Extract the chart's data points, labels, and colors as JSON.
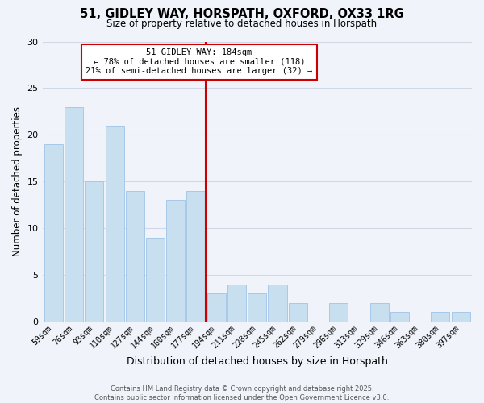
{
  "title": "51, GIDLEY WAY, HORSPATH, OXFORD, OX33 1RG",
  "subtitle": "Size of property relative to detached houses in Horspath",
  "xlabel": "Distribution of detached houses by size in Horspath",
  "ylabel": "Number of detached properties",
  "categories": [
    "59sqm",
    "76sqm",
    "93sqm",
    "110sqm",
    "127sqm",
    "144sqm",
    "160sqm",
    "177sqm",
    "194sqm",
    "211sqm",
    "228sqm",
    "245sqm",
    "262sqm",
    "279sqm",
    "296sqm",
    "313sqm",
    "329sqm",
    "346sqm",
    "363sqm",
    "380sqm",
    "397sqm"
  ],
  "values": [
    19,
    23,
    15,
    21,
    14,
    9,
    13,
    14,
    3,
    4,
    3,
    4,
    2,
    0,
    2,
    0,
    2,
    1,
    0,
    1,
    1
  ],
  "bar_color": "#c8dff0",
  "bar_edge_color": "#a8c8e8",
  "highlight_label": "51 GIDLEY WAY: 184sqm",
  "annotation_line1": "← 78% of detached houses are smaller (118)",
  "annotation_line2": "21% of semi-detached houses are larger (32) →",
  "vline_color": "#cc0000",
  "ylim": [
    0,
    30
  ],
  "yticks": [
    0,
    5,
    10,
    15,
    20,
    25,
    30
  ],
  "background_color": "#f0f4fa",
  "grid_color": "#d0d8e8",
  "footer_line1": "Contains HM Land Registry data © Crown copyright and database right 2025.",
  "footer_line2": "Contains public sector information licensed under the Open Government Licence v3.0."
}
